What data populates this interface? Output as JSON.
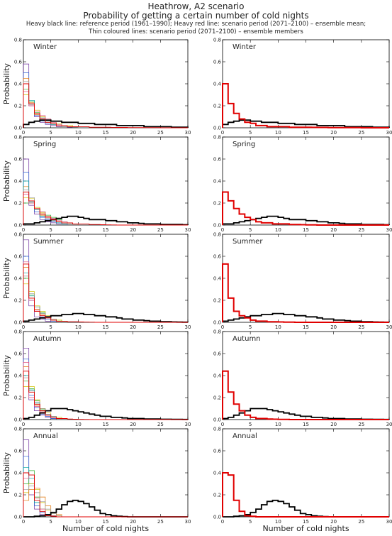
{
  "header": {
    "title": "Heathrow, A2 scenario",
    "subtitle": "Probability of getting a certain number of cold nights",
    "note_line1": "Heavy black line: reference period (1961–1990); Heavy red line: scenario period (2071–2100) – ensemble mean;",
    "note_line2": "Thin coloured lines: scenario period (2071–2100) – ensemble members"
  },
  "axes": {
    "xlabel": "Number of cold nights",
    "ylabel": "Probability",
    "xlim": [
      0,
      30
    ],
    "ylim": [
      0,
      0.8
    ],
    "xticks": [
      "0",
      "5",
      "10",
      "15",
      "20",
      "25",
      "30"
    ],
    "yticks": [
      "0.0",
      "0.2",
      "0.4",
      "0.6",
      "0.8"
    ]
  },
  "colors": {
    "reference": "#000000",
    "ensemble_mean": "#e00000",
    "members": [
      "#7030a0",
      "#3060d0",
      "#30b030",
      "#d0c000",
      "#e07000",
      "#00a0a0",
      "#e05080",
      "#9a9a9a"
    ]
  },
  "chart_data": [
    {
      "type": "line",
      "season": "Winter",
      "column": "left",
      "reference": [
        0.03,
        0.05,
        0.06,
        0.07,
        0.07,
        0.06,
        0.06,
        0.05,
        0.05,
        0.05,
        0.04,
        0.04,
        0.04,
        0.03,
        0.03,
        0.03,
        0.03,
        0.02,
        0.02,
        0.02,
        0.02,
        0.02,
        0.01,
        0.01,
        0.01,
        0.01,
        0.01,
        0.005,
        0.005,
        0.005
      ],
      "mean": [
        0.4,
        0.22,
        0.13,
        0.08,
        0.05,
        0.04,
        0.02,
        0.02,
        0.01,
        0.01,
        0.01,
        0.01,
        0.005,
        0.005,
        0.005,
        0.005,
        0.004,
        0.003,
        0.003,
        0.002,
        0.002,
        0.002,
        0.001,
        0.001,
        0.001,
        0,
        0,
        0,
        0,
        0
      ],
      "members": [
        [
          0.58,
          0.2,
          0.1,
          0.05,
          0.03,
          0.02,
          0.01,
          0.01,
          0.005,
          0.005
        ],
        [
          0.5,
          0.22,
          0.11,
          0.06,
          0.04,
          0.03,
          0.02,
          0.01,
          0.01,
          0.005
        ],
        [
          0.35,
          0.24,
          0.14,
          0.09,
          0.06,
          0.04,
          0.03,
          0.02,
          0.01,
          0.01
        ],
        [
          0.3,
          0.22,
          0.16,
          0.1,
          0.07,
          0.05,
          0.04,
          0.02,
          0.02,
          0.01
        ],
        [
          0.45,
          0.23,
          0.12,
          0.07,
          0.05,
          0.03,
          0.02,
          0.01,
          0.01,
          0.005
        ],
        [
          0.4,
          0.25,
          0.13,
          0.08,
          0.05,
          0.03,
          0.02,
          0.01,
          0.01,
          0.005
        ],
        [
          0.33,
          0.2,
          0.15,
          0.11,
          0.08,
          0.05,
          0.03,
          0.02,
          0.01,
          0.01
        ],
        [
          0.42,
          0.21,
          0.13,
          0.09,
          0.06,
          0.04,
          0.02,
          0.01,
          0.01,
          0.005
        ]
      ]
    },
    {
      "type": "line",
      "season": "Winter",
      "column": "right",
      "reference": [
        0.03,
        0.05,
        0.06,
        0.07,
        0.07,
        0.06,
        0.06,
        0.05,
        0.05,
        0.05,
        0.04,
        0.04,
        0.04,
        0.03,
        0.03,
        0.03,
        0.03,
        0.02,
        0.02,
        0.02,
        0.02,
        0.02,
        0.01,
        0.01,
        0.01,
        0.01,
        0.01,
        0.005,
        0.005,
        0.005
      ],
      "mean": [
        0.4,
        0.22,
        0.13,
        0.08,
        0.05,
        0.04,
        0.02,
        0.02,
        0.01,
        0.01,
        0.01,
        0.01,
        0.005,
        0.005,
        0.005,
        0.005,
        0.004,
        0.003,
        0.003,
        0.002,
        0.002,
        0.002,
        0.001,
        0.001,
        0.001,
        0,
        0,
        0,
        0,
        0
      ],
      "members": []
    },
    {
      "type": "line",
      "season": "Spring",
      "column": "left",
      "reference": [
        0.01,
        0.01,
        0.02,
        0.03,
        0.04,
        0.05,
        0.06,
        0.07,
        0.08,
        0.08,
        0.07,
        0.06,
        0.05,
        0.05,
        0.05,
        0.04,
        0.04,
        0.03,
        0.03,
        0.02,
        0.02,
        0.015,
        0.01,
        0.01,
        0.01,
        0.005,
        0.005,
        0.005,
        0.005,
        0.003
      ],
      "mean": [
        0.3,
        0.22,
        0.15,
        0.1,
        0.07,
        0.05,
        0.03,
        0.02,
        0.02,
        0.01,
        0.01,
        0.01,
        0.005,
        0.005,
        0.003,
        0.002,
        0.001,
        0,
        0,
        0,
        0,
        0,
        0,
        0,
        0,
        0,
        0,
        0,
        0,
        0
      ],
      "members": [
        [
          0.6,
          0.18,
          0.1,
          0.05,
          0.03,
          0.02,
          0.01,
          0.01
        ],
        [
          0.48,
          0.22,
          0.12,
          0.07,
          0.05,
          0.03,
          0.02,
          0.01
        ],
        [
          0.2,
          0.2,
          0.16,
          0.12,
          0.09,
          0.07,
          0.05,
          0.03,
          0.02,
          0.01
        ],
        [
          0.25,
          0.24,
          0.16,
          0.11,
          0.08,
          0.05,
          0.04,
          0.02,
          0.01,
          0.01
        ],
        [
          0.35,
          0.22,
          0.14,
          0.09,
          0.07,
          0.05,
          0.03,
          0.02,
          0.01,
          0.01
        ],
        [
          0.4,
          0.21,
          0.14,
          0.08,
          0.06,
          0.04,
          0.02,
          0.01,
          0.01
        ],
        [
          0.28,
          0.2,
          0.15,
          0.12,
          0.08,
          0.06,
          0.04,
          0.03,
          0.02,
          0.01
        ],
        [
          0.32,
          0.25,
          0.15,
          0.1,
          0.06,
          0.04,
          0.03,
          0.02,
          0.01
        ]
      ]
    },
    {
      "type": "line",
      "season": "Spring",
      "column": "right",
      "reference": [
        0.01,
        0.01,
        0.02,
        0.03,
        0.04,
        0.05,
        0.06,
        0.07,
        0.08,
        0.08,
        0.07,
        0.06,
        0.05,
        0.05,
        0.05,
        0.04,
        0.04,
        0.03,
        0.03,
        0.02,
        0.02,
        0.015,
        0.01,
        0.01,
        0.01,
        0.005,
        0.005,
        0.005,
        0.005,
        0.003
      ],
      "mean": [
        0.3,
        0.22,
        0.15,
        0.1,
        0.07,
        0.05,
        0.03,
        0.02,
        0.02,
        0.01,
        0.01,
        0.01,
        0.005,
        0.005,
        0.003,
        0.002,
        0.001,
        0,
        0,
        0,
        0,
        0,
        0,
        0,
        0,
        0,
        0,
        0,
        0,
        0
      ],
      "members": []
    },
    {
      "type": "line",
      "season": "Summer",
      "column": "left",
      "reference": [
        0.01,
        0.02,
        0.03,
        0.04,
        0.05,
        0.06,
        0.06,
        0.07,
        0.07,
        0.08,
        0.08,
        0.07,
        0.07,
        0.06,
        0.06,
        0.05,
        0.05,
        0.04,
        0.03,
        0.03,
        0.02,
        0.02,
        0.015,
        0.01,
        0.01,
        0.005,
        0.005,
        0.003,
        0.002,
        0.001
      ],
      "mean": [
        0.53,
        0.22,
        0.1,
        0.06,
        0.04,
        0.02,
        0.01,
        0.01,
        0.005,
        0.005,
        0.003,
        0.002,
        0.001,
        0,
        0,
        0,
        0,
        0,
        0,
        0,
        0,
        0,
        0,
        0,
        0,
        0,
        0,
        0,
        0,
        0
      ],
      "members": [
        [
          0.75,
          0.15,
          0.05,
          0.03,
          0.01
        ],
        [
          0.6,
          0.2,
          0.1,
          0.05,
          0.03,
          0.01
        ],
        [
          0.4,
          0.25,
          0.15,
          0.09,
          0.05,
          0.03,
          0.02,
          0.01
        ],
        [
          0.35,
          0.28,
          0.15,
          0.1,
          0.06,
          0.03,
          0.02,
          0.01
        ],
        [
          0.5,
          0.22,
          0.12,
          0.07,
          0.04,
          0.03,
          0.01
        ],
        [
          0.45,
          0.24,
          0.14,
          0.08,
          0.05,
          0.02,
          0.01
        ],
        [
          0.55,
          0.2,
          0.11,
          0.06,
          0.04,
          0.02,
          0.01
        ],
        [
          0.42,
          0.26,
          0.14,
          0.08,
          0.05,
          0.03,
          0.01
        ]
      ]
    },
    {
      "type": "line",
      "season": "Summer",
      "column": "right",
      "reference": [
        0.01,
        0.02,
        0.03,
        0.04,
        0.05,
        0.06,
        0.06,
        0.07,
        0.07,
        0.08,
        0.08,
        0.07,
        0.07,
        0.06,
        0.06,
        0.05,
        0.05,
        0.04,
        0.03,
        0.03,
        0.02,
        0.02,
        0.015,
        0.01,
        0.01,
        0.005,
        0.005,
        0.003,
        0.002,
        0.001
      ],
      "mean": [
        0.53,
        0.22,
        0.1,
        0.06,
        0.04,
        0.02,
        0.01,
        0.01,
        0.005,
        0.005,
        0.003,
        0.002,
        0.001,
        0,
        0,
        0,
        0,
        0,
        0,
        0,
        0,
        0,
        0,
        0,
        0,
        0,
        0,
        0,
        0,
        0
      ],
      "members": []
    },
    {
      "type": "line",
      "season": "Autumn",
      "column": "left",
      "reference": [
        0.01,
        0.02,
        0.04,
        0.06,
        0.08,
        0.1,
        0.1,
        0.1,
        0.09,
        0.08,
        0.07,
        0.06,
        0.05,
        0.04,
        0.03,
        0.03,
        0.02,
        0.02,
        0.015,
        0.01,
        0.01,
        0.01,
        0.005,
        0.005,
        0.005,
        0.003,
        0.003,
        0.002,
        0.002,
        0.001
      ],
      "mean": [
        0.44,
        0.25,
        0.14,
        0.08,
        0.04,
        0.02,
        0.01,
        0.01,
        0.005,
        0.003,
        0.002,
        0.001,
        0,
        0,
        0,
        0,
        0,
        0,
        0,
        0,
        0,
        0,
        0,
        0,
        0,
        0,
        0,
        0,
        0,
        0
      ],
      "members": [
        [
          0.65,
          0.18,
          0.08,
          0.04,
          0.02,
          0.01
        ],
        [
          0.55,
          0.22,
          0.11,
          0.05,
          0.03,
          0.01
        ],
        [
          0.35,
          0.28,
          0.17,
          0.09,
          0.05,
          0.03,
          0.01
        ],
        [
          0.3,
          0.3,
          0.18,
          0.1,
          0.06,
          0.03,
          0.02,
          0.01
        ],
        [
          0.48,
          0.25,
          0.13,
          0.07,
          0.04,
          0.02,
          0.01
        ],
        [
          0.4,
          0.27,
          0.15,
          0.08,
          0.05,
          0.03,
          0.01
        ],
        [
          0.52,
          0.2,
          0.12,
          0.07,
          0.04,
          0.02,
          0.01
        ],
        [
          0.38,
          0.26,
          0.16,
          0.1,
          0.05,
          0.03,
          0.01
        ]
      ]
    },
    {
      "type": "line",
      "season": "Autumn",
      "column": "right",
      "reference": [
        0.01,
        0.02,
        0.04,
        0.06,
        0.08,
        0.1,
        0.1,
        0.1,
        0.09,
        0.08,
        0.07,
        0.06,
        0.05,
        0.04,
        0.03,
        0.03,
        0.02,
        0.02,
        0.015,
        0.01,
        0.01,
        0.01,
        0.005,
        0.005,
        0.005,
        0.003,
        0.003,
        0.002,
        0.002,
        0.001
      ],
      "mean": [
        0.44,
        0.25,
        0.14,
        0.08,
        0.04,
        0.02,
        0.01,
        0.01,
        0.005,
        0.003,
        0.002,
        0.001,
        0,
        0,
        0,
        0,
        0,
        0,
        0,
        0,
        0,
        0,
        0,
        0,
        0,
        0,
        0,
        0,
        0,
        0
      ],
      "members": []
    },
    {
      "type": "line",
      "season": "Annual",
      "column": "left",
      "reference": [
        0,
        0,
        0.005,
        0.01,
        0.02,
        0.04,
        0.07,
        0.11,
        0.14,
        0.15,
        0.14,
        0.12,
        0.09,
        0.06,
        0.03,
        0.02,
        0.01,
        0.005,
        0.002,
        0,
        0,
        0,
        0,
        0,
        0,
        0,
        0,
        0,
        0,
        0
      ],
      "mean": [
        0.4,
        0.38,
        0.15,
        0.05,
        0.01,
        0.005,
        0,
        0,
        0,
        0,
        0,
        0,
        0,
        0,
        0,
        0,
        0,
        0,
        0,
        0,
        0,
        0,
        0,
        0,
        0,
        0,
        0,
        0,
        0,
        0
      ],
      "members": [
        [
          0.7,
          0.2,
          0.07,
          0.02,
          0.01
        ],
        [
          0.55,
          0.3,
          0.1,
          0.04,
          0.01
        ],
        [
          0.3,
          0.42,
          0.18,
          0.07,
          0.02,
          0.01
        ],
        [
          0.22,
          0.3,
          0.25,
          0.13,
          0.06,
          0.03,
          0.01
        ],
        [
          0.15,
          0.25,
          0.26,
          0.18,
          0.1,
          0.04,
          0.02
        ],
        [
          0.45,
          0.35,
          0.13,
          0.05,
          0.02
        ],
        [
          0.35,
          0.38,
          0.17,
          0.07,
          0.02,
          0.01
        ],
        [
          0.25,
          0.28,
          0.22,
          0.14,
          0.07,
          0.03,
          0.01
        ]
      ]
    },
    {
      "type": "line",
      "season": "Annual",
      "column": "right",
      "reference": [
        0,
        0,
        0.005,
        0.01,
        0.02,
        0.04,
        0.07,
        0.11,
        0.14,
        0.15,
        0.14,
        0.12,
        0.09,
        0.06,
        0.03,
        0.02,
        0.01,
        0.005,
        0.002,
        0,
        0,
        0,
        0,
        0,
        0,
        0,
        0,
        0,
        0,
        0
      ],
      "mean": [
        0.4,
        0.38,
        0.15,
        0.05,
        0.01,
        0.005,
        0,
        0,
        0,
        0,
        0,
        0,
        0,
        0,
        0,
        0,
        0,
        0,
        0,
        0,
        0,
        0,
        0,
        0,
        0,
        0,
        0,
        0,
        0,
        0
      ],
      "members": []
    }
  ]
}
